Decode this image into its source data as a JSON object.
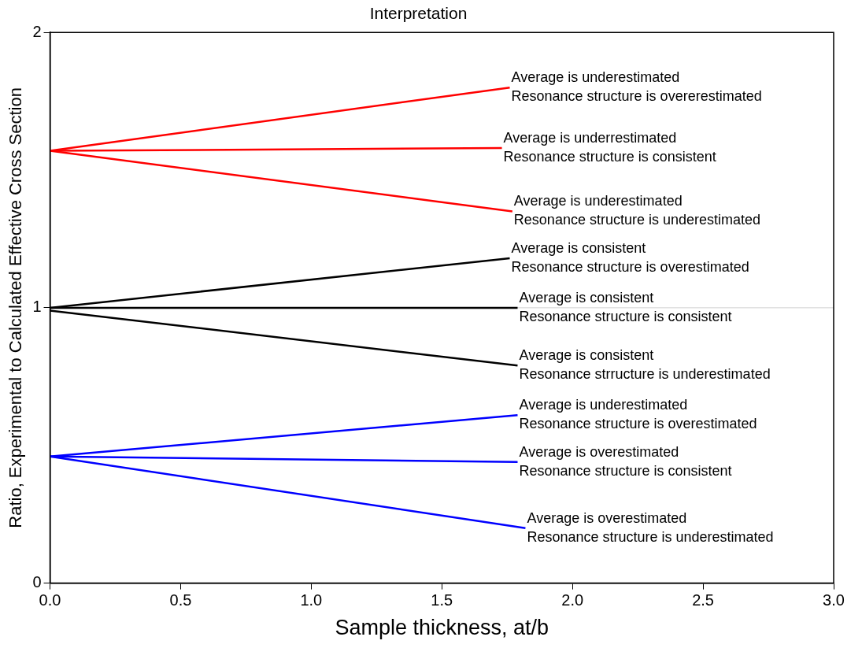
{
  "chart_data": {
    "type": "line",
    "title": "Interpretation",
    "xlabel": "Sample thickness, at/b",
    "ylabel": "Ratio, Experimental to Calculated Effective Cross Section",
    "xlim": [
      0,
      3
    ],
    "xticks": [
      {
        "value": 0,
        "label": "0.0"
      },
      {
        "value": 0.5,
        "label": "0.5"
      },
      {
        "value": 1,
        "label": "1.0"
      },
      {
        "value": 1.5,
        "label": "1.5"
      },
      {
        "value": 2,
        "label": "2.0"
      },
      {
        "value": 2.5,
        "label": "2.5"
      },
      {
        "value": 3,
        "label": "3.0"
      }
    ],
    "ylim": [
      0,
      2
    ],
    "yticks": [
      0,
      1,
      2
    ],
    "grid": false,
    "legend": false,
    "marker": "none",
    "line_style": "solid",
    "series": [
      {
        "color": "#ff0000",
        "x": [
          0,
          1.76
        ],
        "values": [
          1.57,
          1.8
        ]
      },
      {
        "color": "#ff0000",
        "x": [
          0,
          1.73
        ],
        "values": [
          1.57,
          1.58
        ]
      },
      {
        "color": "#ff0000",
        "x": [
          0,
          1.77
        ],
        "values": [
          1.57,
          1.35
        ]
      },
      {
        "color": "#000000",
        "x": [
          0,
          1.76
        ],
        "values": [
          1,
          1.18
        ]
      },
      {
        "color": "#000000",
        "x": [
          0,
          1.79
        ],
        "values": [
          1,
          1
        ]
      },
      {
        "color": "#000000",
        "x": [
          0,
          1.79
        ],
        "values": [
          0.99,
          0.79
        ]
      },
      {
        "color": "#0000ff",
        "x": [
          0,
          1.79
        ],
        "values": [
          0.46,
          0.61
        ]
      },
      {
        "color": "#0000ff",
        "x": [
          0,
          1.79
        ],
        "values": [
          0.46,
          0.44
        ]
      },
      {
        "color": "#0000ff",
        "x": [
          0,
          1.82
        ],
        "values": [
          0.46,
          0.2
        ]
      }
    ],
    "ref_lines": [
      {
        "axis": "y",
        "value": 1,
        "color": "#d0d0d0"
      }
    ],
    "annotations": [
      {
        "text": "Average is underestimated\nResonance structure is overerestimated",
        "x": 1.76,
        "y": 1.8
      },
      {
        "text": "Average is underrestimated\nResonance structure is consistent",
        "x": 1.73,
        "y": 1.58
      },
      {
        "text": "Average is underestimated\nResonance structure is underestimated",
        "x": 1.77,
        "y": 1.35
      },
      {
        "text": "Average is consistent\nResonance structure is overestimated",
        "x": 1.76,
        "y": 1.18
      },
      {
        "text": "Average is consistent\nResonance structure is consistent",
        "x": 1.79,
        "y": 1
      },
      {
        "text": "Average is consistent\nResonance strructure is underestimated",
        "x": 1.79,
        "y": 0.79
      },
      {
        "text": "Average is underestimated\nResonance structure is overestimated",
        "x": 1.79,
        "y": 0.61
      },
      {
        "text": "Average is overestimated\nResonance structure is consistent",
        "x": 1.79,
        "y": 0.44
      },
      {
        "text": "Average is overestimated\nResonance structure is underestimated",
        "x": 1.82,
        "y": 0.2
      }
    ]
  }
}
